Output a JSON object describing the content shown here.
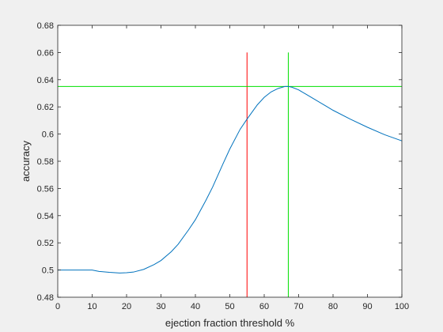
{
  "chart_data": {
    "type": "line",
    "title": "",
    "xlabel": "ejection fraction threshold %",
    "ylabel": "accuracy",
    "xlim": [
      0,
      100
    ],
    "ylim": [
      0.48,
      0.68
    ],
    "grid": false,
    "x_ticks": [
      0,
      10,
      20,
      30,
      40,
      50,
      60,
      70,
      80,
      90,
      100
    ],
    "x_tick_labels": [
      "0",
      "10",
      "20",
      "30",
      "40",
      "50",
      "60",
      "70",
      "80",
      "90",
      "100"
    ],
    "y_ticks": [
      0.48,
      0.5,
      0.52,
      0.54,
      0.56,
      0.58,
      0.6,
      0.62,
      0.64,
      0.66,
      0.68
    ],
    "y_tick_labels": [
      "0.48",
      "0.5",
      "0.52",
      "0.54",
      "0.56",
      "0.58",
      "0.6",
      "0.62",
      "0.64",
      "0.66",
      "0.68"
    ],
    "series": [
      {
        "color": "#0072bd",
        "x": [
          0,
          5,
          10,
          12,
          15,
          18,
          20,
          22,
          25,
          28,
          30,
          33,
          35,
          38,
          40,
          43,
          45,
          48,
          50,
          53,
          55,
          58,
          60,
          62,
          64,
          66,
          67,
          68,
          70,
          72,
          75,
          78,
          80,
          85,
          90,
          95,
          100
        ],
        "y": [
          0.5,
          0.5,
          0.5,
          0.499,
          0.4983,
          0.4978,
          0.498,
          0.4985,
          0.5005,
          0.504,
          0.507,
          0.5135,
          0.519,
          0.5295,
          0.537,
          0.551,
          0.561,
          0.578,
          0.589,
          0.6035,
          0.611,
          0.6215,
          0.627,
          0.631,
          0.6335,
          0.635,
          0.635,
          0.6345,
          0.6325,
          0.6295,
          0.625,
          0.6205,
          0.6175,
          0.611,
          0.605,
          0.5995,
          0.595
        ]
      }
    ],
    "reference_lines": [
      {
        "orientation": "vertical",
        "x": 55,
        "y_range": [
          0.48,
          0.66
        ],
        "color": "#ff0000"
      },
      {
        "orientation": "vertical",
        "x": 67,
        "y_range": [
          0.48,
          0.66
        ],
        "color": "#00e000"
      },
      {
        "orientation": "horizontal",
        "y": 0.635,
        "x_range": [
          0,
          100
        ],
        "color": "#00e000"
      }
    ],
    "colors": {
      "plot_background": "#ffffff",
      "figure_background": "#f0f0f0",
      "axis": "#262626"
    }
  }
}
